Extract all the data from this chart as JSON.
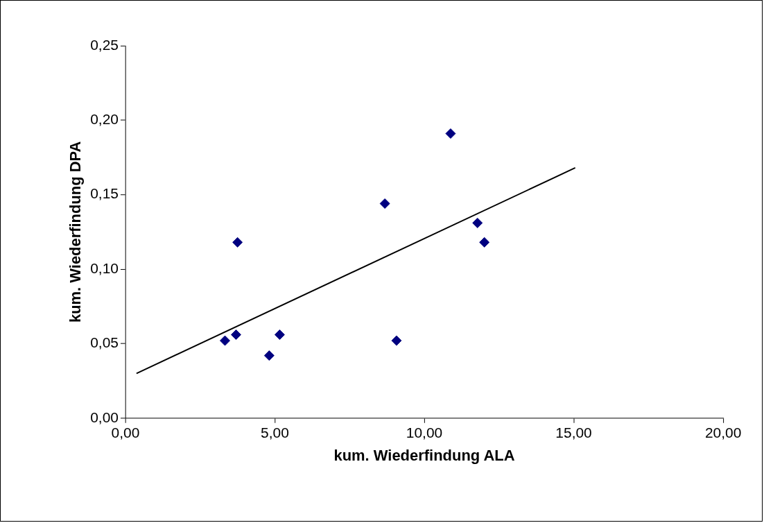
{
  "chart_data": {
    "type": "scatter",
    "xlabel": "kum. Wiederfindung ALA",
    "ylabel": "kum. Wiederfindung DPA",
    "xlim": [
      0,
      20
    ],
    "ylim": [
      0,
      0.25
    ],
    "xticks": [
      {
        "value": 0,
        "label": "0,00"
      },
      {
        "value": 5,
        "label": "5,00"
      },
      {
        "value": 10,
        "label": "10,00"
      },
      {
        "value": 15,
        "label": "15,00"
      },
      {
        "value": 20,
        "label": "20,00"
      }
    ],
    "yticks": [
      {
        "value": 0,
        "label": "0,00"
      },
      {
        "value": 0.05,
        "label": "0,05"
      },
      {
        "value": 0.1,
        "label": "0,10"
      },
      {
        "value": 0.15,
        "label": "0,15"
      },
      {
        "value": 0.2,
        "label": "0,20"
      },
      {
        "value": 0.25,
        "label": "0,25"
      }
    ],
    "grid": false,
    "legend": false,
    "marker": "diamond",
    "series": [
      {
        "type": "scatter",
        "color": "#000080",
        "x": [
          3.33,
          3.7,
          3.75,
          4.81,
          5.16,
          8.68,
          9.07,
          10.88,
          11.78,
          12.01
        ],
        "values": [
          0.052,
          0.056,
          0.118,
          0.042,
          0.056,
          0.144,
          0.052,
          0.191,
          0.131,
          0.118
        ]
      },
      {
        "type": "line",
        "color": "#000000",
        "line_style": "solid",
        "marker": "none",
        "x": [
          0.37,
          15.05
        ],
        "values": [
          0.03,
          0.168
        ]
      }
    ]
  }
}
